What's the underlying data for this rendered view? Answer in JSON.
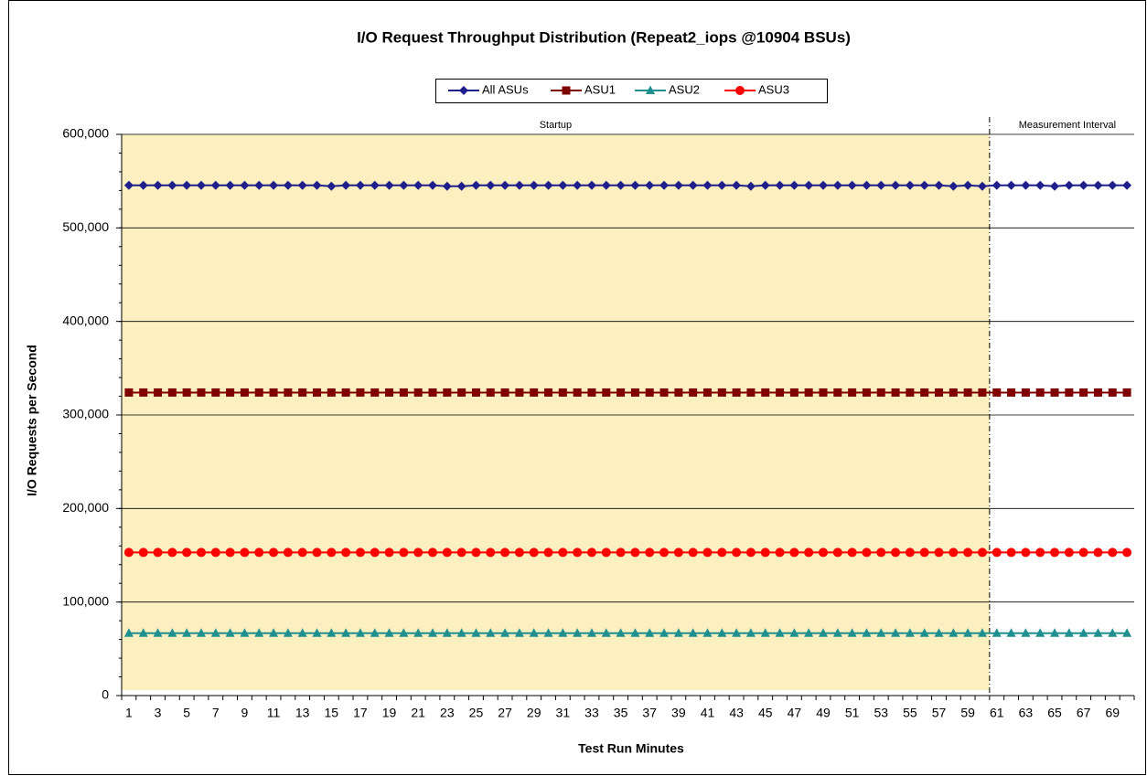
{
  "chart_data": {
    "type": "line",
    "title": "I/O Request Throughput Distribution (Repeat2_iops @10904 BSUs)",
    "x_label": "Test Run Minutes",
    "y_label": "I/O Requests  per Second",
    "categories": [
      1,
      null,
      3,
      null,
      5,
      null,
      7,
      null,
      9,
      null,
      11,
      null,
      13,
      null,
      15,
      null,
      17,
      null,
      19,
      null,
      21,
      null,
      23,
      null,
      25,
      null,
      27,
      null,
      29,
      null,
      31,
      null,
      33,
      null,
      35,
      null,
      37,
      null,
      39,
      null,
      41,
      null,
      43,
      null,
      45,
      null,
      47,
      null,
      49,
      null,
      51,
      null,
      53,
      null,
      55,
      null,
      57,
      null,
      59,
      null,
      61,
      null,
      63,
      null,
      65,
      null,
      67,
      null,
      69,
      null
    ],
    "series": [
      {
        "name": "All ASUs",
        "color": "#1f1f8c",
        "marker": "diamond",
        "values": [
          545500,
          545500,
          545500,
          545500,
          545500,
          545500,
          545500,
          545500,
          545500,
          545500,
          545500,
          545500,
          545500,
          545500,
          544500,
          545500,
          545500,
          545500,
          545500,
          545500,
          545500,
          545500,
          544500,
          544500,
          545500,
          545500,
          545500,
          545500,
          545500,
          545500,
          545500,
          545500,
          545500,
          545500,
          545500,
          545500,
          545500,
          545500,
          545500,
          545500,
          545500,
          545500,
          545500,
          544500,
          545500,
          545500,
          545500,
          545500,
          545500,
          545500,
          545500,
          545500,
          545500,
          545500,
          545500,
          545500,
          545500,
          544500,
          545500,
          544500,
          545500,
          545500,
          545500,
          545500,
          544500,
          545500,
          545500,
          545500,
          545500,
          545500
        ]
      },
      {
        "name": "ASU1",
        "color": "#7f0000",
        "marker": "square",
        "values": [
          324000,
          324000,
          324000,
          324000,
          324000,
          324000,
          324000,
          324000,
          324000,
          324000,
          324000,
          324000,
          324000,
          324000,
          324000,
          324000,
          324000,
          324000,
          324000,
          324000,
          324000,
          324000,
          324000,
          324000,
          324000,
          324000,
          324000,
          324000,
          324000,
          324000,
          324000,
          324000,
          324000,
          324000,
          324000,
          324000,
          324000,
          324000,
          324000,
          324000,
          324000,
          324000,
          324000,
          324000,
          324000,
          324000,
          324000,
          324000,
          324000,
          324000,
          324000,
          324000,
          324000,
          324000,
          324000,
          324000,
          324000,
          324000,
          324000,
          324000,
          324000,
          324000,
          324000,
          324000,
          324000,
          324000,
          324000,
          324000,
          324000,
          324000
        ]
      },
      {
        "name": "ASU2",
        "color": "#1f8f8f",
        "marker": "triangle",
        "values": [
          66700,
          66700,
          66700,
          66700,
          66700,
          66700,
          66700,
          66700,
          66700,
          66700,
          66700,
          66700,
          66700,
          66700,
          66700,
          66700,
          66700,
          66700,
          66700,
          66700,
          66700,
          66700,
          66700,
          66700,
          66700,
          66700,
          66700,
          66700,
          66700,
          66700,
          66700,
          66700,
          66700,
          66700,
          66700,
          66700,
          66700,
          66700,
          66700,
          66700,
          66700,
          66700,
          66700,
          66700,
          66700,
          66700,
          66700,
          66700,
          66700,
          66700,
          66700,
          66700,
          66700,
          66700,
          66700,
          66700,
          66700,
          66700,
          66700,
          66700,
          66700,
          66700,
          66700,
          66700,
          66700,
          66700,
          66700,
          66700,
          66700,
          66700
        ]
      },
      {
        "name": "ASU3",
        "color": "#ff0000",
        "marker": "circle",
        "values": [
          153000,
          153000,
          153000,
          153000,
          153000,
          153000,
          153000,
          153000,
          153000,
          153000,
          153000,
          153000,
          153000,
          153000,
          153000,
          153000,
          153000,
          153000,
          153000,
          153000,
          153000,
          153000,
          153000,
          153000,
          153000,
          153000,
          153000,
          153000,
          153000,
          153000,
          153000,
          153000,
          153000,
          153000,
          153000,
          153000,
          153000,
          153000,
          153000,
          153000,
          153000,
          153000,
          153000,
          153000,
          153000,
          153000,
          153000,
          153000,
          153000,
          153000,
          153000,
          153000,
          153000,
          153000,
          153000,
          153000,
          153000,
          153000,
          153000,
          153000,
          153000,
          153000,
          153000,
          153000,
          153000,
          153000,
          153000,
          153000,
          153000,
          153000
        ]
      }
    ],
    "regions": [
      {
        "label": "Startup",
        "start": 1,
        "end": 60,
        "color": "#fcefc0"
      },
      {
        "label": "Measurement Interval",
        "start": 61,
        "end": 70
      }
    ],
    "ylim": [
      0,
      600000
    ],
    "yticks": [
      0,
      {
        "value": 100000,
        "label": "100,000"
      },
      {
        "value": 200000,
        "label": "200,000"
      },
      {
        "value": 300000,
        "label": "300,000"
      },
      {
        "value": 400000,
        "label": "400,000"
      },
      {
        "value": 500000,
        "label": "500,000"
      },
      {
        "value": 600000,
        "label": "600,000"
      }
    ],
    "grid": true,
    "legend": "top"
  }
}
